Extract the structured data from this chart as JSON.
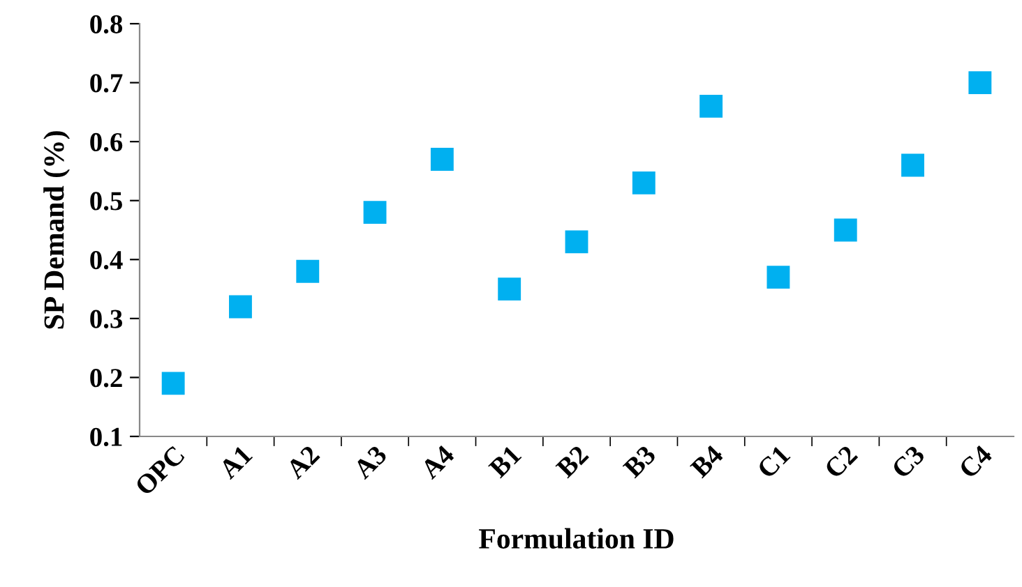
{
  "chart_data": {
    "type": "scatter",
    "xlabel": "Formulation ID",
    "ylabel": "SP Demand (%)",
    "categories": [
      "OPC",
      "A1",
      "A2",
      "A3",
      "A4",
      "B1",
      "B2",
      "B3",
      "B4",
      "C1",
      "C2",
      "C3",
      "C4"
    ],
    "series": [
      {
        "color": "#00b0f0",
        "values": [
          0.19,
          0.32,
          0.38,
          0.48,
          0.57,
          0.35,
          0.43,
          0.53,
          0.66,
          0.37,
          0.45,
          0.56,
          0.7
        ]
      }
    ],
    "ylim": [
      0.1,
      0.8
    ],
    "yticks": [
      0.1,
      0.2,
      0.3,
      0.4,
      0.5,
      0.6,
      0.7,
      0.8
    ],
    "marker": "square",
    "grid": false
  }
}
